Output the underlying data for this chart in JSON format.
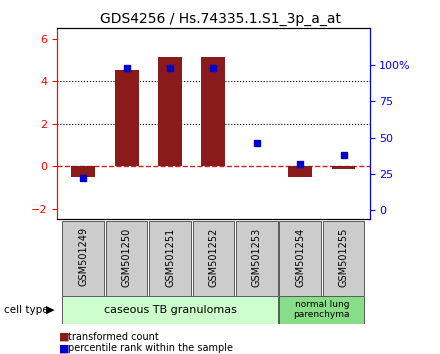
{
  "title": "GDS4256 / Hs.74335.1.S1_3p_a_at",
  "samples": [
    "GSM501249",
    "GSM501250",
    "GSM501251",
    "GSM501252",
    "GSM501253",
    "GSM501254",
    "GSM501255"
  ],
  "transformed_count": [
    -0.5,
    4.55,
    5.15,
    5.15,
    0.0,
    -0.5,
    -0.1
  ],
  "percentile_rank": [
    22,
    98,
    98,
    98,
    46,
    32,
    38
  ],
  "ylim_left": [
    -2.5,
    6.5
  ],
  "ylim_right": [
    -6.25,
    125
  ],
  "yticks_left": [
    -2,
    0,
    2,
    4,
    6
  ],
  "yticks_right": [
    0,
    25,
    50,
    75,
    100
  ],
  "ytick_labels_right": [
    "0",
    "25",
    "50",
    "75",
    "100%"
  ],
  "bar_color": "#8B1A1A",
  "square_color": "#0000CC",
  "hline_color": "#CC2222",
  "dot_line_color": "black",
  "group1_label": "caseous TB granulomas",
  "group2_label": "normal lung\nparenchyma",
  "cell_type_label": "cell type",
  "legend1": "transformed count",
  "legend2": "percentile rank within the sample",
  "group1_color": "#ccffcc",
  "group2_color": "#88dd88",
  "sample_bg_color": "#cccccc",
  "title_fontsize": 10,
  "bar_width": 0.55,
  "white_bg": "#ffffff"
}
